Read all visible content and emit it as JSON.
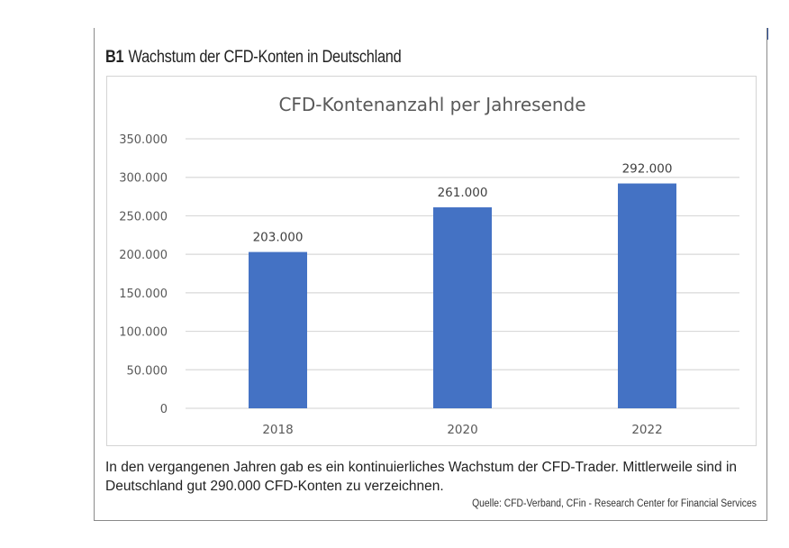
{
  "figure": {
    "label": "B1",
    "title": "Wachstum der CFD-Konten in Deutschland",
    "caption_line1": "In den vergangenen Jahren gab es ein kontinuierliches Wachstum der CFD-Trader. Mittlerweile sind in",
    "caption_line2": "Deutschland gut 290.000 CFD-Konten zu verzeichnen.",
    "source": "Quelle: CFD-Verband, CFin - Research Center for Financial Services",
    "accent_color": "#2b4d96"
  },
  "chart_data": {
    "type": "bar",
    "title": "CFD-Kontenanzahl per Jahresende",
    "categories": [
      "2018",
      "2020",
      "2022"
    ],
    "values": [
      203000,
      261000,
      292000
    ],
    "value_labels": [
      "203.000",
      "261.000",
      "292.000"
    ],
    "xlabel": "",
    "ylabel": "",
    "ylim": [
      0,
      350000
    ],
    "yticks": [
      0,
      50000,
      100000,
      150000,
      200000,
      250000,
      300000,
      350000
    ],
    "ytick_labels": [
      "0",
      "50.000",
      "100.000",
      "150.000",
      "200.000",
      "250.000",
      "300.000",
      "350.000"
    ],
    "grid": true,
    "legend": "none",
    "bar_color": "#4472C4"
  }
}
